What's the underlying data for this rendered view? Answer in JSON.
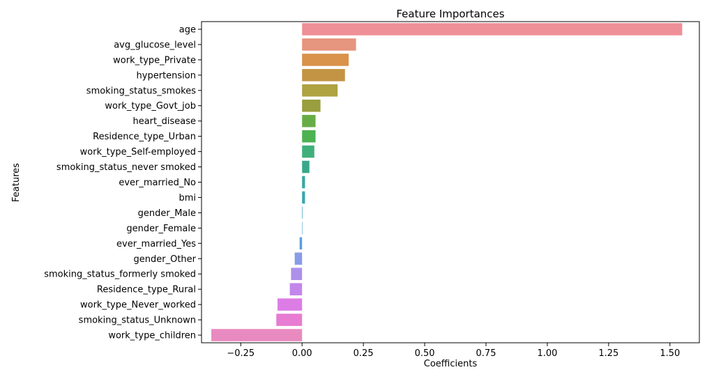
{
  "chart_data": {
    "type": "bar",
    "orientation": "horizontal",
    "title": "Feature Importances",
    "xlabel": "Coefficients",
    "ylabel": "Features",
    "xlim": [
      -0.41,
      1.62
    ],
    "xticks": [
      -0.25,
      0.0,
      0.25,
      0.5,
      0.75,
      1.0,
      1.25,
      1.5
    ],
    "xtick_labels": [
      "−0.25",
      "0.00",
      "0.25",
      "0.50",
      "0.75",
      "1.00",
      "1.25",
      "1.50"
    ],
    "grid": false,
    "categories": [
      "age",
      "avg_glucose_level",
      "work_type_Private",
      "hypertension",
      "smoking_status_smokes",
      "work_type_Govt_job",
      "heart_disease",
      "Residence_type_Urban",
      "work_type_Self-employed",
      "smoking_status_never smoked",
      "ever_married_No",
      "bmi",
      "gender_Male",
      "gender_Female",
      "ever_married_Yes",
      "gender_Other",
      "smoking_status_formerly smoked",
      "Residence_type_Rural",
      "work_type_Never_worked",
      "smoking_status_Unknown",
      "work_type_children"
    ],
    "values": [
      1.55,
      0.22,
      0.19,
      0.175,
      0.145,
      0.075,
      0.055,
      0.055,
      0.05,
      0.03,
      0.012,
      0.012,
      0.002,
      0.001,
      -0.01,
      -0.03,
      -0.045,
      -0.05,
      -0.1,
      -0.105,
      -0.37
    ],
    "colors": [
      "#ef8f98",
      "#e6957f",
      "#d9924a",
      "#c39443",
      "#aea241",
      "#999e3e",
      "#67ad47",
      "#4db252",
      "#3fb07a",
      "#3aa88a",
      "#3aa6a0",
      "#3ba5af",
      "#3ea3bc",
      "#46a1cc",
      "#5a9ee0",
      "#8a9be8",
      "#ad90ea",
      "#c386ea",
      "#dc7de6",
      "#e77cd2",
      "#e88ac0"
    ]
  }
}
